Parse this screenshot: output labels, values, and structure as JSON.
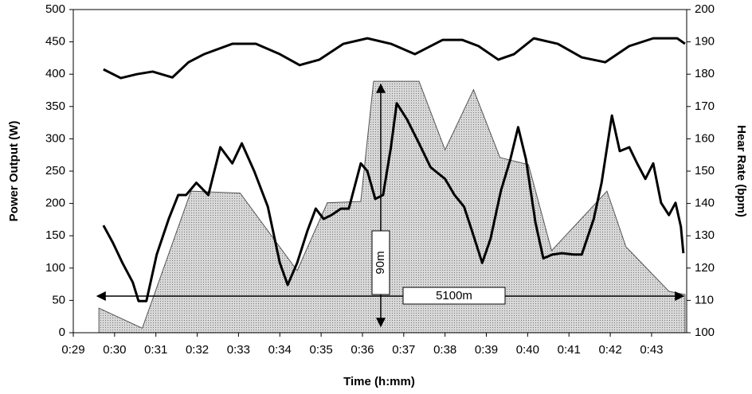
{
  "chart_data": {
    "type": "combo",
    "x_label": "Time (h:mm)",
    "y_label": "Power Output (W)",
    "y2_label": "Hear Rate (bpm)",
    "xlim": [
      29,
      43.85
    ],
    "xticks": [
      {
        "value": 29,
        "label": "0:29"
      },
      {
        "value": 30,
        "label": "0:30"
      },
      {
        "value": 31,
        "label": "0:31"
      },
      {
        "value": 32,
        "label": "0:32"
      },
      {
        "value": 33,
        "label": "0:33"
      },
      {
        "value": 34,
        "label": "0:34"
      },
      {
        "value": 35,
        "label": "0:35"
      },
      {
        "value": 36,
        "label": "0:36"
      },
      {
        "value": 37,
        "label": "0:37"
      },
      {
        "value": 38,
        "label": "0:38"
      },
      {
        "value": 39,
        "label": "0:39"
      },
      {
        "value": 40,
        "label": "0:40"
      },
      {
        "value": 41,
        "label": "0:41"
      },
      {
        "value": 42,
        "label": "0:42"
      },
      {
        "value": 43,
        "label": "0:43"
      }
    ],
    "ylim": [
      0,
      500
    ],
    "yticks": [
      0,
      50,
      100,
      150,
      200,
      250,
      300,
      350,
      400,
      450,
      500
    ],
    "y2lim": [
      100,
      200
    ],
    "y2ticks": [
      100,
      110,
      120,
      130,
      140,
      150,
      160,
      170,
      180,
      190,
      200
    ],
    "series": [
      {
        "type": "area",
        "color": "#c4c4c4",
        "x": [
          29.62,
          30.67,
          31.85,
          33.04,
          34.42,
          35.15,
          35.96,
          36.27,
          37.37,
          38.0,
          38.69,
          39.33,
          40.02,
          40.58,
          41.92,
          42.38,
          43.42,
          43.81
        ],
        "values": [
          38,
          7,
          219,
          216,
          96,
          201,
          203,
          389,
          389,
          283,
          376,
          271,
          260,
          127,
          219,
          133,
          64,
          59
        ]
      },
      {
        "type": "line",
        "color": "#000000",
        "x": [
          29.73,
          29.96,
          30.19,
          30.44,
          30.58,
          30.77,
          31.02,
          31.31,
          31.54,
          31.73,
          31.98,
          32.27,
          32.56,
          32.85,
          33.08,
          33.38,
          33.71,
          34.0,
          34.19,
          34.42,
          34.67,
          34.87,
          35.06,
          35.25,
          35.48,
          35.67,
          35.96,
          36.12,
          36.31,
          36.5,
          36.69,
          36.83,
          37.08,
          37.37,
          37.65,
          38.0,
          38.23,
          38.46,
          38.65,
          38.9,
          39.1,
          39.35,
          39.58,
          39.77,
          39.96,
          40.19,
          40.38,
          40.6,
          40.83,
          41.12,
          41.31,
          41.6,
          41.79,
          42.04,
          42.23,
          42.46,
          42.65,
          42.85,
          43.04,
          43.23,
          43.42,
          43.58,
          43.71,
          43.77
        ],
        "values": [
          166,
          139,
          108,
          78,
          49,
          49,
          121,
          176,
          213,
          213,
          232,
          213,
          287,
          262,
          293,
          250,
          195,
          108,
          74,
          108,
          158,
          192,
          176,
          182,
          192,
          192,
          262,
          250,
          207,
          213,
          287,
          355,
          330,
          293,
          256,
          238,
          213,
          195,
          158,
          108,
          145,
          219,
          268,
          318,
          268,
          170,
          115,
          121,
          123,
          121,
          121,
          176,
          232,
          336,
          281,
          287,
          262,
          238,
          262,
          201,
          182,
          201,
          164,
          123
        ]
      },
      {
        "type": "line",
        "color": "#000000",
        "axis": "y2",
        "x": [
          29.73,
          30.15,
          30.54,
          30.92,
          31.4,
          31.79,
          32.17,
          32.85,
          33.42,
          34.0,
          34.48,
          34.96,
          35.54,
          36.12,
          36.69,
          37.27,
          37.94,
          38.42,
          38.81,
          39.29,
          39.67,
          40.15,
          40.73,
          41.31,
          41.88,
          42.46,
          43.04,
          43.62,
          43.81
        ],
        "values": [
          181.5,
          178.8,
          180,
          180.8,
          179,
          183.7,
          186.2,
          189.4,
          189.4,
          186.2,
          182.8,
          184.5,
          189.4,
          191.1,
          189.4,
          186.2,
          190.6,
          190.6,
          188.7,
          184.5,
          186.2,
          191.1,
          189.4,
          185.2,
          183.7,
          188.7,
          191.1,
          191.1,
          189.4
        ]
      }
    ],
    "annotations": [
      "90m",
      "5100m"
    ]
  }
}
